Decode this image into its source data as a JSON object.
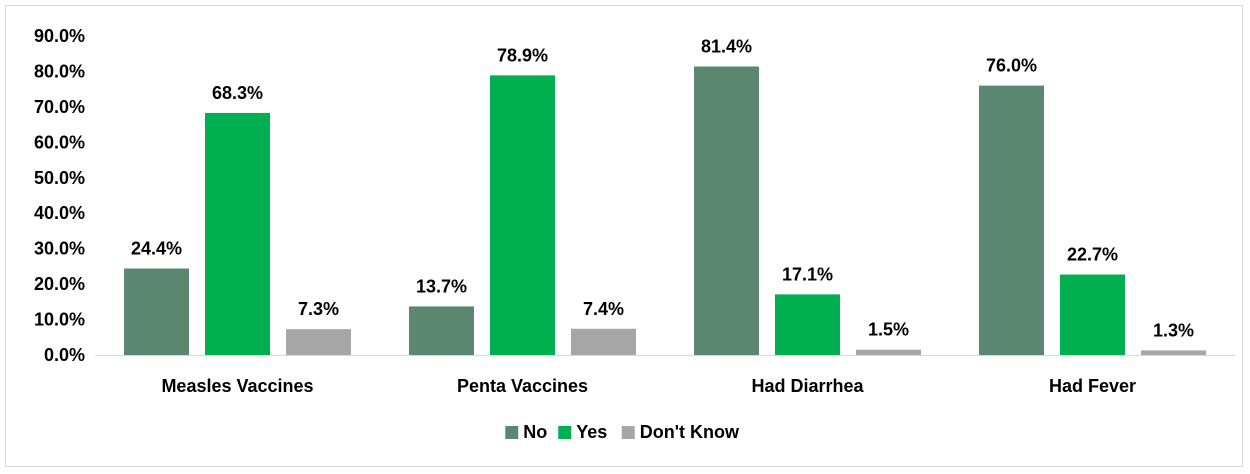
{
  "chart_data": {
    "type": "bar",
    "categories": [
      "Measles Vaccines",
      "Penta Vaccines",
      "Had Diarrhea",
      "Had Fever"
    ],
    "series": [
      {
        "name": "No",
        "values": [
          24.4,
          13.7,
          81.4,
          76.0
        ],
        "color": "#5b8770"
      },
      {
        "name": "Yes",
        "values": [
          68.3,
          78.9,
          17.1,
          22.7
        ],
        "color": "#00b050"
      },
      {
        "name": "Don't Know",
        "values": [
          7.3,
          7.4,
          1.5,
          1.3
        ],
        "color": "#a6a6a6"
      }
    ],
    "title": "",
    "xlabel": "",
    "ylabel": "",
    "ylim": [
      0,
      90
    ],
    "yticks": [
      "0.0%",
      "10.0%",
      "20.0%",
      "30.0%",
      "40.0%",
      "50.0%",
      "60.0%",
      "70.0%",
      "80.0%",
      "90.0%"
    ],
    "data_labels": [
      [
        "24.4%",
        "13.7%",
        "81.4%",
        "76.0%"
      ],
      [
        "68.3%",
        "78.9%",
        "17.1%",
        "22.7%"
      ],
      [
        "7.3%",
        "7.4%",
        "1.5%",
        "1.3%"
      ]
    ],
    "legend_position": "bottom",
    "grid": false
  }
}
